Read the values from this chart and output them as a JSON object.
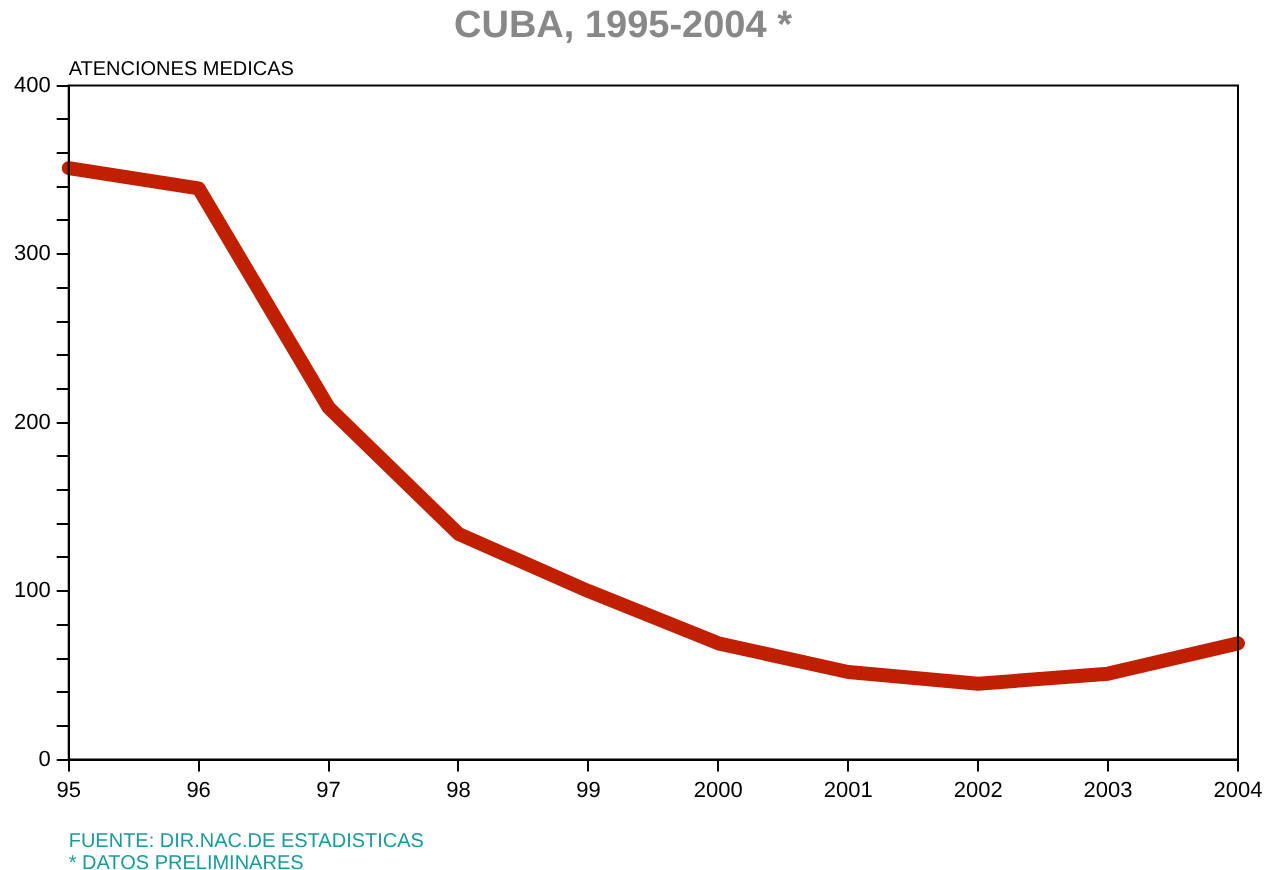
{
  "chart_data": {
    "type": "line",
    "title": "CUBA, 1995-2004 *",
    "ylabel": "ATENCIONES MEDICAS",
    "categories": [
      "95",
      "96",
      "97",
      "98",
      "99",
      "2000",
      "2001",
      "2002",
      "2003",
      "2004"
    ],
    "series": [
      {
        "color": "#c02000",
        "values": [
          351,
          339,
          209,
          134,
          100,
          69,
          52,
          45,
          51,
          69
        ]
      }
    ],
    "ylim": [
      0,
      400
    ],
    "yticks": [
      0,
      {
        "value": 20,
        "label": null
      },
      {
        "value": 40,
        "label": null
      },
      {
        "value": 60,
        "label": null
      },
      {
        "value": 80,
        "label": null
      },
      100,
      {
        "value": 120,
        "label": null
      },
      {
        "value": 140,
        "label": null
      },
      {
        "value": 160,
        "label": null
      },
      {
        "value": 180,
        "label": null
      },
      200,
      {
        "value": 220,
        "label": null
      },
      {
        "value": 240,
        "label": null
      },
      {
        "value": 260,
        "label": null
      },
      {
        "value": 280,
        "label": null
      },
      300,
      {
        "value": 320,
        "label": null
      },
      {
        "value": 340,
        "label": null
      },
      {
        "value": 360,
        "label": null
      },
      {
        "value": 380,
        "label": null
      },
      400
    ],
    "grid": false,
    "legend": false,
    "marker": "none",
    "line_style": "solid",
    "annotations": [
      "FUENTE: DIR.NAC.DE ESTADISTICAS",
      "* DATOS PRELIMINARES"
    ]
  }
}
